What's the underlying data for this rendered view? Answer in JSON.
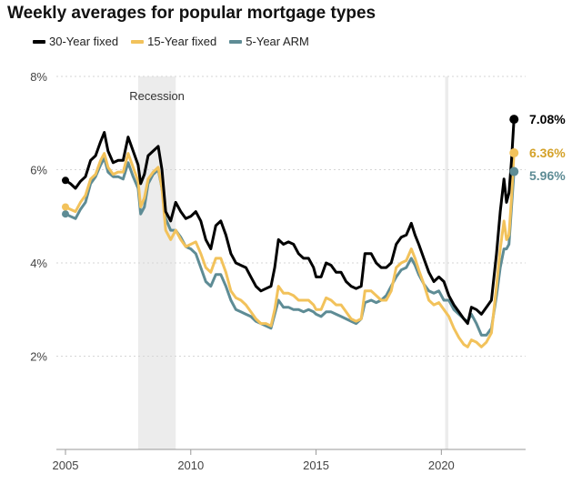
{
  "title": "Weekly averages for popular mortgage types",
  "chart_data": {
    "type": "line",
    "title": "Weekly averages for popular mortgage types",
    "xlabel": "",
    "ylabel": "",
    "xlim": [
      2005,
      2023
    ],
    "ylim": [
      0,
      8
    ],
    "xticks": [
      "2005",
      "2010",
      "2015",
      "2020"
    ],
    "yticks": [
      "2%",
      "4%",
      "6%",
      "8%"
    ],
    "grid": "horizontal",
    "legend": "top-left",
    "annotations": [
      {
        "label": "Recession",
        "x_start": 2007.9,
        "x_end": 2009.4
      },
      {
        "label": "",
        "x_start": 2020.15,
        "x_end": 2020.28
      }
    ],
    "series": [
      {
        "name": "30-Year fixed",
        "color": "#000000",
        "end_label": "7.08%",
        "points": [
          [
            2005.0,
            5.77
          ],
          [
            2005.2,
            5.7
          ],
          [
            2005.4,
            5.6
          ],
          [
            2005.6,
            5.75
          ],
          [
            2005.8,
            5.85
          ],
          [
            2006.0,
            6.2
          ],
          [
            2006.2,
            6.3
          ],
          [
            2006.4,
            6.6
          ],
          [
            2006.55,
            6.8
          ],
          [
            2006.7,
            6.4
          ],
          [
            2006.9,
            6.15
          ],
          [
            2007.1,
            6.2
          ],
          [
            2007.3,
            6.2
          ],
          [
            2007.5,
            6.7
          ],
          [
            2007.7,
            6.4
          ],
          [
            2007.9,
            6.1
          ],
          [
            2008.0,
            5.7
          ],
          [
            2008.15,
            5.9
          ],
          [
            2008.3,
            6.3
          ],
          [
            2008.5,
            6.4
          ],
          [
            2008.7,
            6.5
          ],
          [
            2008.85,
            6.0
          ],
          [
            2009.0,
            5.1
          ],
          [
            2009.2,
            4.9
          ],
          [
            2009.4,
            5.3
          ],
          [
            2009.6,
            5.1
          ],
          [
            2009.8,
            4.95
          ],
          [
            2010.0,
            5.0
          ],
          [
            2010.2,
            5.1
          ],
          [
            2010.4,
            4.9
          ],
          [
            2010.6,
            4.5
          ],
          [
            2010.8,
            4.3
          ],
          [
            2011.0,
            4.8
          ],
          [
            2011.2,
            4.9
          ],
          [
            2011.4,
            4.6
          ],
          [
            2011.6,
            4.2
          ],
          [
            2011.8,
            4.0
          ],
          [
            2012.0,
            3.95
          ],
          [
            2012.2,
            3.9
          ],
          [
            2012.4,
            3.7
          ],
          [
            2012.6,
            3.5
          ],
          [
            2012.8,
            3.4
          ],
          [
            2013.0,
            3.45
          ],
          [
            2013.2,
            3.5
          ],
          [
            2013.35,
            3.9
          ],
          [
            2013.5,
            4.5
          ],
          [
            2013.7,
            4.4
          ],
          [
            2013.9,
            4.45
          ],
          [
            2014.1,
            4.4
          ],
          [
            2014.3,
            4.2
          ],
          [
            2014.5,
            4.1
          ],
          [
            2014.7,
            4.1
          ],
          [
            2014.9,
            3.9
          ],
          [
            2015.0,
            3.7
          ],
          [
            2015.2,
            3.7
          ],
          [
            2015.4,
            4.0
          ],
          [
            2015.6,
            3.95
          ],
          [
            2015.8,
            3.8
          ],
          [
            2016.0,
            3.8
          ],
          [
            2016.2,
            3.6
          ],
          [
            2016.4,
            3.5
          ],
          [
            2016.6,
            3.45
          ],
          [
            2016.8,
            3.5
          ],
          [
            2016.95,
            4.2
          ],
          [
            2017.2,
            4.2
          ],
          [
            2017.4,
            4.0
          ],
          [
            2017.6,
            3.9
          ],
          [
            2017.8,
            3.9
          ],
          [
            2018.0,
            4.0
          ],
          [
            2018.2,
            4.4
          ],
          [
            2018.4,
            4.55
          ],
          [
            2018.6,
            4.6
          ],
          [
            2018.8,
            4.85
          ],
          [
            2018.95,
            4.6
          ],
          [
            2019.1,
            4.4
          ],
          [
            2019.3,
            4.1
          ],
          [
            2019.5,
            3.8
          ],
          [
            2019.7,
            3.6
          ],
          [
            2019.9,
            3.7
          ],
          [
            2020.1,
            3.6
          ],
          [
            2020.3,
            3.3
          ],
          [
            2020.5,
            3.1
          ],
          [
            2020.7,
            2.95
          ],
          [
            2020.9,
            2.8
          ],
          [
            2021.05,
            2.7
          ],
          [
            2021.2,
            3.05
          ],
          [
            2021.4,
            3.0
          ],
          [
            2021.6,
            2.9
          ],
          [
            2021.8,
            3.05
          ],
          [
            2022.0,
            3.2
          ],
          [
            2022.2,
            4.2
          ],
          [
            2022.35,
            5.1
          ],
          [
            2022.5,
            5.8
          ],
          [
            2022.6,
            5.3
          ],
          [
            2022.7,
            5.5
          ],
          [
            2022.8,
            6.2
          ],
          [
            2022.9,
            7.08
          ]
        ]
      },
      {
        "name": "15-Year fixed",
        "color": "#f2c25b",
        "end_label": "6.36%",
        "points": [
          [
            2005.0,
            5.2
          ],
          [
            2005.2,
            5.15
          ],
          [
            2005.4,
            5.1
          ],
          [
            2005.6,
            5.3
          ],
          [
            2005.8,
            5.45
          ],
          [
            2006.0,
            5.8
          ],
          [
            2006.2,
            5.9
          ],
          [
            2006.4,
            6.2
          ],
          [
            2006.55,
            6.35
          ],
          [
            2006.7,
            6.05
          ],
          [
            2006.9,
            5.9
          ],
          [
            2007.1,
            5.95
          ],
          [
            2007.3,
            5.95
          ],
          [
            2007.5,
            6.35
          ],
          [
            2007.7,
            6.05
          ],
          [
            2007.9,
            5.75
          ],
          [
            2008.0,
            5.2
          ],
          [
            2008.15,
            5.4
          ],
          [
            2008.3,
            5.8
          ],
          [
            2008.5,
            5.95
          ],
          [
            2008.7,
            6.05
          ],
          [
            2008.85,
            5.6
          ],
          [
            2009.0,
            4.7
          ],
          [
            2009.2,
            4.5
          ],
          [
            2009.4,
            4.7
          ],
          [
            2009.6,
            4.5
          ],
          [
            2009.8,
            4.35
          ],
          [
            2010.0,
            4.4
          ],
          [
            2010.2,
            4.45
          ],
          [
            2010.4,
            4.2
          ],
          [
            2010.6,
            3.9
          ],
          [
            2010.8,
            3.8
          ],
          [
            2011.0,
            4.1
          ],
          [
            2011.2,
            4.1
          ],
          [
            2011.4,
            3.8
          ],
          [
            2011.6,
            3.4
          ],
          [
            2011.8,
            3.25
          ],
          [
            2012.0,
            3.2
          ],
          [
            2012.2,
            3.1
          ],
          [
            2012.4,
            2.95
          ],
          [
            2012.6,
            2.8
          ],
          [
            2012.8,
            2.7
          ],
          [
            2013.0,
            2.7
          ],
          [
            2013.2,
            2.65
          ],
          [
            2013.35,
            3.0
          ],
          [
            2013.5,
            3.5
          ],
          [
            2013.7,
            3.35
          ],
          [
            2013.9,
            3.35
          ],
          [
            2014.1,
            3.3
          ],
          [
            2014.3,
            3.2
          ],
          [
            2014.5,
            3.2
          ],
          [
            2014.7,
            3.2
          ],
          [
            2014.9,
            3.1
          ],
          [
            2015.0,
            3.0
          ],
          [
            2015.2,
            3.0
          ],
          [
            2015.4,
            3.25
          ],
          [
            2015.6,
            3.2
          ],
          [
            2015.8,
            3.1
          ],
          [
            2016.0,
            3.1
          ],
          [
            2016.2,
            2.95
          ],
          [
            2016.4,
            2.8
          ],
          [
            2016.6,
            2.75
          ],
          [
            2016.8,
            2.8
          ],
          [
            2016.95,
            3.4
          ],
          [
            2017.2,
            3.4
          ],
          [
            2017.4,
            3.3
          ],
          [
            2017.6,
            3.2
          ],
          [
            2017.8,
            3.2
          ],
          [
            2018.0,
            3.4
          ],
          [
            2018.2,
            3.9
          ],
          [
            2018.4,
            4.0
          ],
          [
            2018.6,
            4.05
          ],
          [
            2018.8,
            4.3
          ],
          [
            2018.95,
            4.1
          ],
          [
            2019.1,
            3.85
          ],
          [
            2019.3,
            3.55
          ],
          [
            2019.5,
            3.2
          ],
          [
            2019.7,
            3.1
          ],
          [
            2019.9,
            3.15
          ],
          [
            2020.1,
            3.0
          ],
          [
            2020.3,
            2.85
          ],
          [
            2020.5,
            2.6
          ],
          [
            2020.7,
            2.4
          ],
          [
            2020.9,
            2.25
          ],
          [
            2021.05,
            2.2
          ],
          [
            2021.2,
            2.35
          ],
          [
            2021.4,
            2.3
          ],
          [
            2021.6,
            2.2
          ],
          [
            2021.8,
            2.3
          ],
          [
            2022.0,
            2.5
          ],
          [
            2022.2,
            3.5
          ],
          [
            2022.35,
            4.3
          ],
          [
            2022.5,
            4.9
          ],
          [
            2022.6,
            4.5
          ],
          [
            2022.7,
            4.6
          ],
          [
            2022.8,
            5.4
          ],
          [
            2022.9,
            6.36
          ]
        ]
      },
      {
        "name": "5-Year ARM",
        "color": "#5e8c95",
        "end_label": "5.96%",
        "points": [
          [
            2005.0,
            5.05
          ],
          [
            2005.2,
            5.0
          ],
          [
            2005.4,
            4.95
          ],
          [
            2005.6,
            5.15
          ],
          [
            2005.8,
            5.3
          ],
          [
            2006.0,
            5.7
          ],
          [
            2006.2,
            5.85
          ],
          [
            2006.4,
            6.1
          ],
          [
            2006.55,
            6.25
          ],
          [
            2006.7,
            5.95
          ],
          [
            2006.9,
            5.85
          ],
          [
            2007.1,
            5.85
          ],
          [
            2007.3,
            5.8
          ],
          [
            2007.5,
            6.15
          ],
          [
            2007.7,
            5.85
          ],
          [
            2007.9,
            5.6
          ],
          [
            2008.0,
            5.05
          ],
          [
            2008.15,
            5.2
          ],
          [
            2008.3,
            5.7
          ],
          [
            2008.5,
            5.9
          ],
          [
            2008.7,
            6.0
          ],
          [
            2008.85,
            5.6
          ],
          [
            2009.0,
            4.95
          ],
          [
            2009.2,
            4.7
          ],
          [
            2009.4,
            4.7
          ],
          [
            2009.6,
            4.55
          ],
          [
            2009.8,
            4.35
          ],
          [
            2010.0,
            4.3
          ],
          [
            2010.2,
            4.2
          ],
          [
            2010.4,
            3.9
          ],
          [
            2010.6,
            3.6
          ],
          [
            2010.8,
            3.5
          ],
          [
            2011.0,
            3.75
          ],
          [
            2011.2,
            3.75
          ],
          [
            2011.4,
            3.5
          ],
          [
            2011.6,
            3.2
          ],
          [
            2011.8,
            3.0
          ],
          [
            2012.0,
            2.95
          ],
          [
            2012.2,
            2.9
          ],
          [
            2012.4,
            2.85
          ],
          [
            2012.6,
            2.75
          ],
          [
            2012.8,
            2.7
          ],
          [
            2013.0,
            2.65
          ],
          [
            2013.2,
            2.6
          ],
          [
            2013.35,
            2.9
          ],
          [
            2013.5,
            3.2
          ],
          [
            2013.7,
            3.05
          ],
          [
            2013.9,
            3.05
          ],
          [
            2014.1,
            3.0
          ],
          [
            2014.3,
            3.0
          ],
          [
            2014.5,
            2.95
          ],
          [
            2014.7,
            3.0
          ],
          [
            2014.9,
            2.95
          ],
          [
            2015.0,
            2.9
          ],
          [
            2015.2,
            2.85
          ],
          [
            2015.4,
            2.95
          ],
          [
            2015.6,
            2.95
          ],
          [
            2015.8,
            2.9
          ],
          [
            2016.0,
            2.85
          ],
          [
            2016.2,
            2.8
          ],
          [
            2016.4,
            2.75
          ],
          [
            2016.6,
            2.7
          ],
          [
            2016.8,
            2.8
          ],
          [
            2016.95,
            3.15
          ],
          [
            2017.2,
            3.2
          ],
          [
            2017.4,
            3.15
          ],
          [
            2017.6,
            3.2
          ],
          [
            2017.8,
            3.3
          ],
          [
            2018.0,
            3.5
          ],
          [
            2018.2,
            3.7
          ],
          [
            2018.4,
            3.85
          ],
          [
            2018.6,
            3.9
          ],
          [
            2018.8,
            4.1
          ],
          [
            2018.95,
            3.95
          ],
          [
            2019.1,
            3.75
          ],
          [
            2019.3,
            3.55
          ],
          [
            2019.5,
            3.4
          ],
          [
            2019.7,
            3.35
          ],
          [
            2019.9,
            3.4
          ],
          [
            2020.1,
            3.2
          ],
          [
            2020.3,
            3.2
          ],
          [
            2020.5,
            3.0
          ],
          [
            2020.7,
            2.9
          ],
          [
            2020.9,
            2.8
          ],
          [
            2021.05,
            2.75
          ],
          [
            2021.2,
            2.9
          ],
          [
            2021.4,
            2.7
          ],
          [
            2021.6,
            2.45
          ],
          [
            2021.8,
            2.45
          ],
          [
            2022.0,
            2.6
          ],
          [
            2022.2,
            3.3
          ],
          [
            2022.35,
            3.9
          ],
          [
            2022.5,
            4.3
          ],
          [
            2022.6,
            4.3
          ],
          [
            2022.7,
            4.4
          ],
          [
            2022.8,
            5.2
          ],
          [
            2022.9,
            5.96
          ]
        ]
      }
    ]
  }
}
